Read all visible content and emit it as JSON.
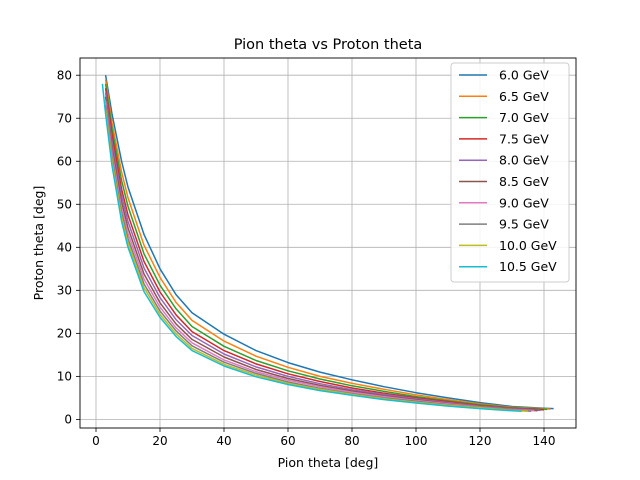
{
  "chart_data": {
    "type": "line",
    "title": "Pion theta vs Proton theta",
    "xlabel": "Pion theta [deg]",
    "ylabel": "Proton theta [deg]",
    "xlim": [
      -5,
      150
    ],
    "ylim": [
      -2,
      84
    ],
    "xticks": [
      0,
      20,
      40,
      60,
      80,
      100,
      120,
      140
    ],
    "yticks": [
      0,
      10,
      20,
      30,
      40,
      50,
      60,
      70,
      80
    ],
    "grid": true,
    "legend": "top-right",
    "series": [
      {
        "name": "6.0 GeV",
        "color": "#1f77b4",
        "x": [
          3,
          5,
          8,
          10,
          15,
          20,
          25,
          30,
          40,
          50,
          60,
          70,
          80,
          90,
          100,
          110,
          120,
          130,
          140,
          143
        ],
        "y": [
          80,
          71,
          60,
          54,
          43,
          35,
          29,
          24.8,
          19.8,
          16,
          13.2,
          11,
          9.2,
          7.6,
          6.2,
          5,
          3.9,
          3,
          2.6,
          2.5
        ]
      },
      {
        "name": "6.5 GeV",
        "color": "#ff7f0e",
        "x": [
          3,
          5,
          8,
          10,
          15,
          20,
          25,
          30,
          40,
          50,
          60,
          70,
          80,
          90,
          100,
          110,
          120,
          130,
          140,
          142
        ],
        "y": [
          79,
          69,
          57.5,
          51.5,
          40.5,
          33,
          27.2,
          23,
          18.2,
          14.7,
          12.1,
          10,
          8.4,
          7,
          5.7,
          4.6,
          3.6,
          2.8,
          2.5,
          2.4
        ]
      },
      {
        "name": "7.0 GeV",
        "color": "#2ca02c",
        "x": [
          3,
          5,
          8,
          10,
          15,
          20,
          25,
          30,
          40,
          50,
          60,
          70,
          80,
          90,
          100,
          110,
          120,
          130,
          140,
          141
        ],
        "y": [
          78,
          67.5,
          55.5,
          49.5,
          38.5,
          31.2,
          25.7,
          21.6,
          17,
          13.7,
          11.3,
          9.4,
          7.8,
          6.5,
          5.3,
          4.3,
          3.4,
          2.7,
          2.4,
          2.3
        ]
      },
      {
        "name": "7.5 GeV",
        "color": "#d62728",
        "x": [
          3,
          5,
          8,
          10,
          15,
          20,
          25,
          30,
          40,
          50,
          60,
          70,
          80,
          90,
          100,
          110,
          120,
          130,
          140
        ],
        "y": [
          77,
          66,
          53.5,
          47.5,
          36.7,
          29.6,
          24.3,
          20.4,
          16,
          12.9,
          10.6,
          8.8,
          7.3,
          6.1,
          5,
          4.1,
          3.2,
          2.6,
          2.2
        ]
      },
      {
        "name": "8.0 GeV",
        "color": "#9467bd",
        "x": [
          3,
          5,
          8,
          10,
          15,
          20,
          25,
          30,
          40,
          50,
          60,
          70,
          80,
          90,
          100,
          110,
          120,
          130,
          139
        ],
        "y": [
          76,
          64.5,
          52,
          46,
          35.2,
          28.3,
          23.2,
          19.5,
          15.2,
          12.2,
          10,
          8.3,
          6.9,
          5.8,
          4.8,
          3.9,
          3.1,
          2.5,
          2.1
        ]
      },
      {
        "name": "8.5 GeV",
        "color": "#8c564b",
        "x": [
          3,
          5,
          8,
          10,
          15,
          20,
          25,
          30,
          40,
          50,
          60,
          70,
          80,
          90,
          100,
          110,
          120,
          130,
          138
        ],
        "y": [
          75,
          63,
          50.5,
          44.5,
          33.8,
          27.1,
          22.2,
          18.6,
          14.5,
          11.6,
          9.5,
          7.9,
          6.6,
          5.5,
          4.6,
          3.7,
          3,
          2.4,
          2
        ]
      },
      {
        "name": "9.0 GeV",
        "color": "#e377c2",
        "x": [
          3,
          5,
          8,
          10,
          15,
          20,
          25,
          30,
          40,
          50,
          60,
          70,
          80,
          90,
          100,
          110,
          120,
          130,
          137
        ],
        "y": [
          74,
          62,
          49,
          43.2,
          32.6,
          26.1,
          21.3,
          17.8,
          13.8,
          11.1,
          9.1,
          7.6,
          6.3,
          5.3,
          4.4,
          3.6,
          2.9,
          2.3,
          2
        ]
      },
      {
        "name": "9.5 GeV",
        "color": "#7f7f7f",
        "x": [
          3,
          5,
          8,
          10,
          15,
          20,
          25,
          30,
          40,
          50,
          60,
          70,
          80,
          90,
          100,
          110,
          120,
          130,
          136
        ],
        "y": [
          73,
          61,
          48,
          42,
          31.5,
          25.2,
          20.6,
          17.1,
          13.3,
          10.7,
          8.7,
          7.2,
          6,
          5,
          4.2,
          3.4,
          2.8,
          2.2,
          1.9
        ]
      },
      {
        "name": "10.0 GeV",
        "color": "#bcbd22",
        "x": [
          3,
          5,
          8,
          10,
          15,
          20,
          25,
          30,
          40,
          50,
          60,
          70,
          80,
          90,
          100,
          110,
          120,
          130,
          135
        ],
        "y": [
          72,
          60,
          47,
          41,
          30.6,
          24.4,
          19.9,
          16.5,
          12.8,
          10.3,
          8.4,
          7,
          5.8,
          4.8,
          4,
          3.3,
          2.7,
          2.1,
          1.9
        ]
      },
      {
        "name": "10.5 GeV",
        "color": "#17becf",
        "x": [
          2,
          3,
          5,
          8,
          10,
          15,
          20,
          25,
          30,
          40,
          50,
          60,
          70,
          80,
          90,
          100,
          110,
          120,
          130,
          133
        ],
        "y": [
          78,
          71,
          59,
          46,
          40,
          29.7,
          23.7,
          19.3,
          16,
          12.4,
          9.9,
          8.1,
          6.7,
          5.6,
          4.6,
          3.8,
          3.1,
          2.5,
          2,
          1.9
        ]
      }
    ]
  }
}
